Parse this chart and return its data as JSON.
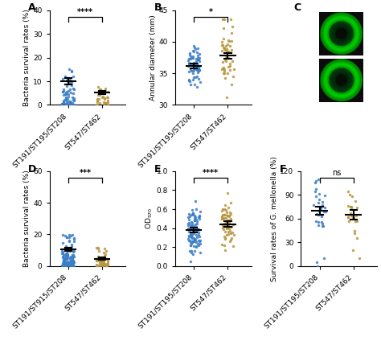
{
  "panel_A": {
    "title": "A",
    "ylabel": "Bacteria survival rates (%)",
    "ylim": [
      0,
      40
    ],
    "yticks": [
      0,
      10,
      20,
      30,
      40
    ],
    "group1_mean": 10.0,
    "group1_sem": 1.3,
    "group2_mean": 5.2,
    "group2_sem": 0.7,
    "n1": 70,
    "n2": 30,
    "significance": "****",
    "color1": "#3A7EC6",
    "color2": "#B8963E",
    "xtick_labels": [
      "ST191/ST195/ST208",
      "ST547/ST462"
    ]
  },
  "panel_B": {
    "title": "B",
    "ylabel": "Annular diameter (mm)",
    "ylim": [
      30,
      45
    ],
    "yticks": [
      30,
      35,
      40,
      45
    ],
    "group1_mean": 36.2,
    "group1_sem": 0.35,
    "group2_mean": 37.8,
    "group2_sem": 0.45,
    "n1": 70,
    "n2": 50,
    "significance": "*",
    "color1": "#3A7EC6",
    "color2": "#B8963E",
    "xtick_labels": [
      "ST191/ST195/ST208",
      "ST547/ST462"
    ]
  },
  "panel_D": {
    "title": "D",
    "ylabel": "Bacteria survival rates (%)",
    "ylim": [
      0,
      60
    ],
    "yticks": [
      0,
      20,
      40,
      60
    ],
    "group1_mean": 10.5,
    "group1_sem": 1.2,
    "group2_mean": 4.5,
    "group2_sem": 0.8,
    "n1": 130,
    "n2": 50,
    "significance": "***",
    "color1": "#3A7EC6",
    "color2": "#B8963E",
    "xtick_labels": [
      "ST191/ST915/ST208",
      "ST547/ST462"
    ]
  },
  "panel_E": {
    "title": "E",
    "ylabel": "OD$_{570}$",
    "ylim": [
      0.0,
      1.0
    ],
    "yticks": [
      0.0,
      0.2,
      0.4,
      0.6,
      0.8,
      1.0
    ],
    "group1_mean": 0.38,
    "group1_sem": 0.025,
    "group2_mean": 0.44,
    "group2_sem": 0.03,
    "n1": 100,
    "n2": 70,
    "significance": "****",
    "color1": "#3A7EC6",
    "color2": "#B8963E",
    "xtick_labels": [
      "ST191/ST195/ST208",
      "ST547/ST462"
    ]
  },
  "panel_F": {
    "title": "F",
    "ylabel": "Survival rates of G. mellonella (%)",
    "ylim": [
      0,
      120
    ],
    "yticks": [
      0,
      30,
      60,
      90,
      120
    ],
    "group1_mean": 70.0,
    "group1_sem": 5.0,
    "group2_mean": 65.0,
    "group2_sem": 6.0,
    "n1": 40,
    "n2": 30,
    "significance": "ns",
    "color1": "#3A7EC6",
    "color2": "#B8963E",
    "xtick_labels": [
      "ST191/ST195/ST208",
      "ST547/ST462"
    ]
  }
}
